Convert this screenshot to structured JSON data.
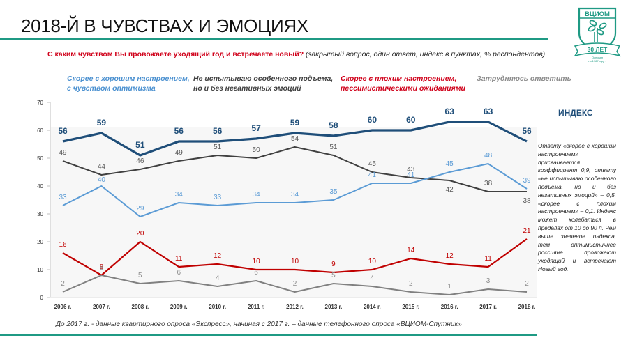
{
  "header": {
    "title": "2018-Й В ЧУВСТВАХ И ЭМОЦИЯХ",
    "question": "С каким чувством Вы провожаете уходящий год и встречаете новый?",
    "question_note": " (закрытый вопрос, один ответ, индекс в пунктах, % респондентов)"
  },
  "logo": {
    "name": "ВЦИОМ",
    "badge": "30 ЛЕТ",
    "caption_line1": "Основан",
    "caption_line2": "• в 1987 году •",
    "color": "#1f9a84"
  },
  "legend": [
    {
      "line1": "Скорее с хорошим настроением,",
      "line2": "с чувством оптимизма",
      "color": "#4a90d0"
    },
    {
      "line1": "Не испытываю особенного подъема,",
      "line2": "но и без негативных эмоций",
      "color": "#404040"
    },
    {
      "line1": "Скорее с плохим настроением,",
      "line2": "пессимистическими ожиданиями",
      "color": "#d0021b"
    },
    {
      "line1": "Затрудняюсь ответить",
      "line2": "",
      "color": "#8c8c8c"
    }
  ],
  "index_panel": {
    "label": "ИНДЕКС",
    "description": "Ответу «скорее с хорошим настроением» присваивается коэффициент 0,9, ответу «не испытываю особенного подъема, но и без негативных эмоций» – 0,5, «скорее с плохим настроением» – 0,1. Индекс может колебаться в пределах от 10 до 90 п. Чем выше значение индекса, тем оптимистичнее россияне провожают уходящий и встречают Новый год."
  },
  "footnote": "До 2017 г. - данные квартирного опроса «Экспресс», начиная с 2017 г. – данные телефонного опроса «ВЦИОМ-Спутник»",
  "chart_data": {
    "type": "line",
    "title": "С каким чувством Вы провожаете уходящий год и встречаете новый?",
    "xlabel": "",
    "ylabel": "",
    "ylim": [
      0,
      70
    ],
    "yticks": [
      0,
      10,
      20,
      30,
      40,
      50,
      60,
      70
    ],
    "grid": false,
    "legend_position": "top",
    "categories": [
      "2006 г.",
      "2007 г.",
      "2008 г.",
      "2009 г.",
      "2010 г.",
      "2011 г.",
      "2012 г.",
      "2013 г.",
      "2014 г.",
      "2015 г.",
      "2016 г.",
      "2017 г.",
      "2018 г."
    ],
    "series": [
      {
        "name": "Индекс",
        "color": "#1f4e79",
        "bold": true,
        "values": [
          56,
          59,
          51,
          56,
          56,
          57,
          59,
          58,
          60,
          60,
          63,
          63,
          56
        ],
        "labels": [
          "56",
          "59",
          "51",
          "56",
          "56",
          "57",
          "59",
          "58",
          "60",
          "60",
          "63",
          "63",
          "56"
        ]
      },
      {
        "name": "Не испытываю особенного подъема, но и без негативных эмоций",
        "color": "#404040",
        "values": [
          49,
          44,
          46,
          49,
          51,
          50,
          54,
          51,
          45,
          43,
          42,
          38,
          38
        ],
        "labels": [
          "49",
          "44",
          "46",
          "49",
          "51",
          "50",
          "54",
          "51",
          "45",
          "43",
          "42",
          "38",
          "38"
        ]
      },
      {
        "name": "Скорее с хорошим настроением, с чувством оптимизма",
        "color": "#5b9bd5",
        "values": [
          33,
          40,
          29,
          34,
          33,
          34,
          34,
          35,
          41,
          41,
          45,
          48,
          39
        ],
        "labels": [
          "33",
          "40",
          "29",
          "34",
          "33",
          "34",
          "34",
          "35",
          "41",
          "41",
          "45",
          "48",
          "39"
        ]
      },
      {
        "name": "Скорее с плохим настроением, пессимистическими ожиданиями",
        "color": "#c00000",
        "values": [
          16,
          8,
          20,
          11,
          12,
          10,
          10,
          9,
          10,
          14,
          12,
          11,
          21
        ],
        "labels": [
          "16",
          "8",
          "20",
          "11",
          "12",
          "10",
          "10",
          "9",
          "10",
          "14",
          "12",
          "11",
          "21"
        ]
      },
      {
        "name": "Затрудняюсь ответить",
        "color": "#808080",
        "values": [
          2,
          8,
          5,
          6,
          4,
          6,
          2,
          5,
          4,
          2,
          1,
          3,
          2
        ],
        "labels": [
          "2",
          "8",
          "5",
          "6",
          "4",
          "6",
          "2",
          "5",
          "4",
          "2",
          "1",
          "3",
          "2"
        ]
      }
    ]
  }
}
